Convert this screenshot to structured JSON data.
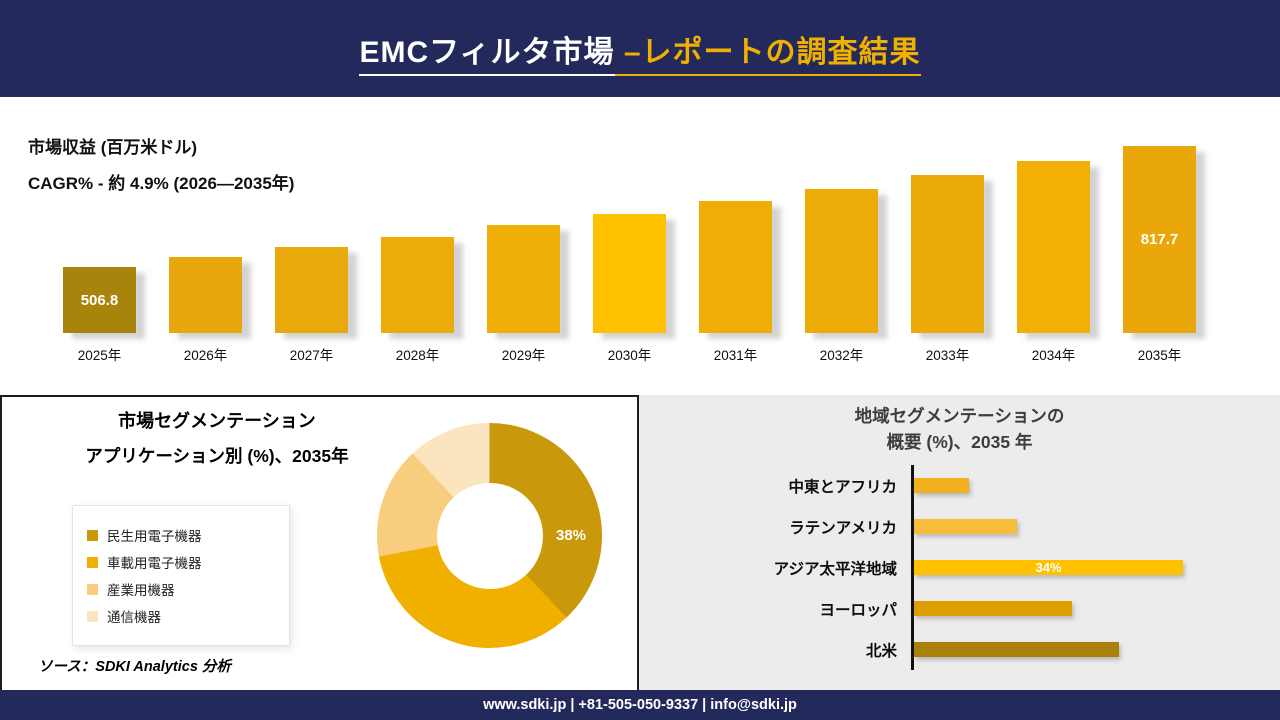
{
  "header": {
    "title_main": "EMCフィルタ市場",
    "title_accent": " –レポートの調査結果"
  },
  "revenue": {
    "metric_label": "市場収益 (百万米ドル)",
    "cagr_label": "CAGR% - 約 4.9% (2026―2035年)"
  },
  "segmentation": {
    "title_line1": "市場セグメンテーション",
    "title_line2": "アプリケーション別 (%)、2035年",
    "source_note": "ソース：SDKI Analytics 分析"
  },
  "region": {
    "title_line1": "地域セグメンテーションの",
    "title_line2": "概要 (%)、2035 年"
  },
  "footer": {
    "contact_line": "www.sdki.jp | +81-505-050-9337 | info@sdki.jp"
  },
  "colors": {
    "navy": "#23295B",
    "accent_gold": "#F0B000",
    "panel_gray": "#ECECEC"
  },
  "chart_data": [
    {
      "type": "bar",
      "title": "市場収益 (百万米ドル)",
      "subtitle": "CAGR% - 約 4.9% (2026―2035年)",
      "categories": [
        "2025年",
        "2026年",
        "2027年",
        "2028年",
        "2029年",
        "2030年",
        "2031年",
        "2032年",
        "2033年",
        "2034年",
        "2035年"
      ],
      "values": [
        506.8,
        531.6,
        557.7,
        585.0,
        613.7,
        643.7,
        675.3,
        708.4,
        743.1,
        779.5,
        817.7
      ],
      "value_labels": {
        "first": "506.8",
        "last": "817.7"
      },
      "bar_colors": [
        "#A8840C",
        "#E7A70D",
        "#E9A90B",
        "#EBAB09",
        "#EFAF06",
        "#FFC000",
        "#EFAD05",
        "#EDAB07",
        "#ECAA08",
        "#F2AF04",
        "#E9A70A"
      ],
      "ylabel": "市場収益 (百万米ドル)",
      "ylim": [
        0,
        900
      ]
    },
    {
      "type": "pie",
      "title": "アプリケーション別 (%)、2035年",
      "legend": [
        {
          "label": "民生用電子機器",
          "color": "#C9980B",
          "value": 38
        },
        {
          "label": "車載用電子機器",
          "color": "#F1AF00",
          "value": 34
        },
        {
          "label": "産業用機器",
          "color": "#F8CE7E",
          "value": 16
        },
        {
          "label": "通信機器",
          "color": "#FBE5BE",
          "value": 12
        }
      ],
      "shown_label": "38%",
      "legend_position": "left"
    },
    {
      "type": "bar",
      "orientation": "horizontal",
      "title": "地域セグメンテーションの概要 (%)、2035 年",
      "categories": [
        "中東とアフリカ",
        "ラテンアメリカ",
        "アジア太平洋地域",
        "ヨーロッパ",
        "北米"
      ],
      "values": [
        7,
        13,
        34,
        20,
        26
      ],
      "bar_colors": [
        "#F2B01E",
        "#F6BE3C",
        "#FFC000",
        "#DD9F00",
        "#A8800A"
      ],
      "inline_label": {
        "category_index": 2,
        "text": "34%"
      },
      "xlim": [
        0,
        40
      ]
    }
  ]
}
